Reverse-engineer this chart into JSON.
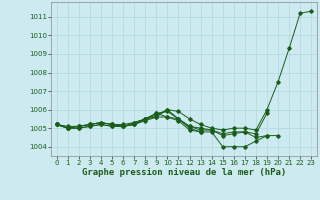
{
  "xlabel": "Graphe pression niveau de la mer (hPa)",
  "xlim": [
    -0.5,
    23.5
  ],
  "ylim": [
    1003.5,
    1011.8
  ],
  "yticks": [
    1004,
    1005,
    1006,
    1007,
    1008,
    1009,
    1010,
    1011
  ],
  "xticks": [
    0,
    1,
    2,
    3,
    4,
    5,
    6,
    7,
    8,
    9,
    10,
    11,
    12,
    13,
    14,
    15,
    16,
    17,
    18,
    19,
    20,
    21,
    22,
    23
  ],
  "bg_color": "#cdeaf0",
  "grid_color": "#aed6dc",
  "line_color": "#1a5c1a",
  "series": [
    [
      1005.2,
      1005.1,
      1005.1,
      1005.2,
      1005.3,
      1005.2,
      1005.2,
      1005.3,
      1005.5,
      1005.7,
      1006.0,
      1005.9,
      1005.5,
      1005.2,
      1005.0,
      1004.9,
      1005.0,
      1005.0,
      1004.9,
      1006.0,
      1007.5,
      1009.3,
      1011.2,
      1011.3
    ],
    [
      1005.2,
      1005.0,
      1005.0,
      1005.1,
      1005.2,
      1005.1,
      1005.1,
      1005.2,
      1005.5,
      1005.8,
      1005.6,
      1005.4,
      1004.9,
      1004.8,
      null,
      null,
      null,
      null,
      null,
      null,
      null,
      null,
      null,
      null
    ],
    [
      1005.2,
      1005.0,
      1005.1,
      1005.2,
      1005.3,
      1005.2,
      1005.1,
      1005.3,
      1005.5,
      1005.6,
      1005.6,
      1005.5,
      1005.1,
      1005.0,
      1004.9,
      1004.7,
      1004.8,
      1004.8,
      1004.7,
      1005.8,
      null,
      null,
      null,
      null
    ],
    [
      1005.2,
      1005.0,
      1005.0,
      1005.1,
      1005.2,
      1005.1,
      1005.1,
      1005.2,
      1005.5,
      1005.8,
      1005.9,
      1005.5,
      1005.0,
      1004.8,
      1004.8,
      1004.0,
      1004.0,
      1004.0,
      1004.3,
      1004.6,
      1004.6,
      null,
      null,
      null
    ],
    [
      1005.2,
      1005.0,
      1005.1,
      1005.2,
      1005.3,
      1005.2,
      1005.1,
      1005.2,
      1005.4,
      1005.6,
      1006.0,
      1005.5,
      1005.1,
      1004.9,
      1004.9,
      1004.6,
      1004.7,
      1004.8,
      1004.5,
      1004.6,
      null,
      null,
      null,
      null
    ]
  ]
}
